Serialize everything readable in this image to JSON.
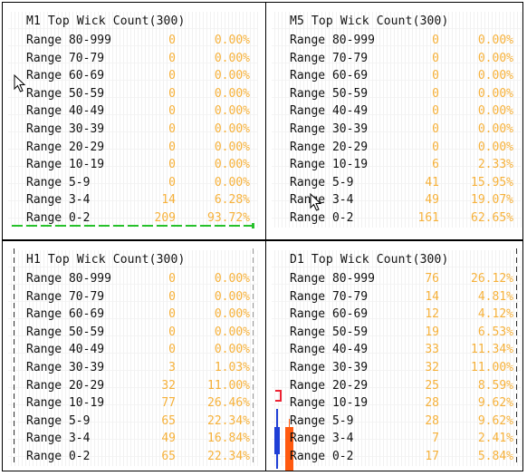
{
  "panels": [
    {
      "id": "m1",
      "title": "M1 Top Wick Count(300)",
      "rows": [
        {
          "label": "Range 80-999",
          "count": "0",
          "pct": "0.00%"
        },
        {
          "label": "Range 70-79",
          "count": "0",
          "pct": "0.00%"
        },
        {
          "label": "Range 60-69",
          "count": "0",
          "pct": "0.00%"
        },
        {
          "label": "Range 50-59",
          "count": "0",
          "pct": "0.00%"
        },
        {
          "label": "Range 40-49",
          "count": "0",
          "pct": "0.00%"
        },
        {
          "label": "Range 30-39",
          "count": "0",
          "pct": "0.00%"
        },
        {
          "label": "Range 20-29",
          "count": "0",
          "pct": "0.00%"
        },
        {
          "label": "Range 10-19",
          "count": "0",
          "pct": "0.00%"
        },
        {
          "label": "Range 5-9",
          "count": "0",
          "pct": "0.00%"
        },
        {
          "label": "Range 3-4",
          "count": "14",
          "pct": "6.28%"
        },
        {
          "label": "Range 0-2",
          "count": "209",
          "pct": "93.72%"
        }
      ]
    },
    {
      "id": "m5",
      "title": "M5 Top Wick Count(300)",
      "rows": [
        {
          "label": "Range 80-999",
          "count": "0",
          "pct": "0.00%"
        },
        {
          "label": "Range 70-79",
          "count": "0",
          "pct": "0.00%"
        },
        {
          "label": "Range 60-69",
          "count": "0",
          "pct": "0.00%"
        },
        {
          "label": "Range 50-59",
          "count": "0",
          "pct": "0.00%"
        },
        {
          "label": "Range 40-49",
          "count": "0",
          "pct": "0.00%"
        },
        {
          "label": "Range 30-39",
          "count": "0",
          "pct": "0.00%"
        },
        {
          "label": "Range 20-29",
          "count": "0",
          "pct": "0.00%"
        },
        {
          "label": "Range 10-19",
          "count": "6",
          "pct": "2.33%"
        },
        {
          "label": "Range 5-9",
          "count": "41",
          "pct": "15.95%"
        },
        {
          "label": "Range 3-4",
          "count": "49",
          "pct": "19.07%"
        },
        {
          "label": "Range 0-2",
          "count": "161",
          "pct": "62.65%"
        }
      ]
    },
    {
      "id": "h1",
      "title": "H1 Top Wick Count(300)",
      "rows": [
        {
          "label": "Range 80-999",
          "count": "0",
          "pct": "0.00%"
        },
        {
          "label": "Range 70-79",
          "count": "0",
          "pct": "0.00%"
        },
        {
          "label": "Range 60-69",
          "count": "0",
          "pct": "0.00%"
        },
        {
          "label": "Range 50-59",
          "count": "0",
          "pct": "0.00%"
        },
        {
          "label": "Range 40-49",
          "count": "0",
          "pct": "0.00%"
        },
        {
          "label": "Range 30-39",
          "count": "3",
          "pct": "1.03%"
        },
        {
          "label": "Range 20-29",
          "count": "32",
          "pct": "11.00%"
        },
        {
          "label": "Range 10-19",
          "count": "77",
          "pct": "26.46%"
        },
        {
          "label": "Range 5-9",
          "count": "65",
          "pct": "22.34%"
        },
        {
          "label": "Range 3-4",
          "count": "49",
          "pct": "16.84%"
        },
        {
          "label": "Range 0-2",
          "count": "65",
          "pct": "22.34%"
        }
      ]
    },
    {
      "id": "d1",
      "title": "D1 Top Wick Count(300)",
      "rows": [
        {
          "label": "Range 80-999",
          "count": "76",
          "pct": "26.12%"
        },
        {
          "label": "Range 70-79",
          "count": "14",
          "pct": "4.81%"
        },
        {
          "label": "Range 60-69",
          "count": "12",
          "pct": "4.12%"
        },
        {
          "label": "Range 50-59",
          "count": "19",
          "pct": "6.53%"
        },
        {
          "label": "Range 40-49",
          "count": "33",
          "pct": "11.34%"
        },
        {
          "label": "Range 30-39",
          "count": "32",
          "pct": "11.00%"
        },
        {
          "label": "Range 20-29",
          "count": "25",
          "pct": "8.59%"
        },
        {
          "label": "Range 10-19",
          "count": "28",
          "pct": "9.62%"
        },
        {
          "label": "Range 5-9",
          "count": "28",
          "pct": "9.62%"
        },
        {
          "label": "Range 3-4",
          "count": "7",
          "pct": "2.41%"
        },
        {
          "label": "Range 0-2",
          "count": "17",
          "pct": "5.84%"
        }
      ]
    }
  ],
  "colors": {
    "label": "#111111",
    "value": "#f6b13a",
    "border": "#000000",
    "green_dash": "#27c12b",
    "candle_blue": "#1f3fd6",
    "candle_orange": "#ff5a10"
  },
  "icons": [
    "mouse-cursor-icon"
  ]
}
